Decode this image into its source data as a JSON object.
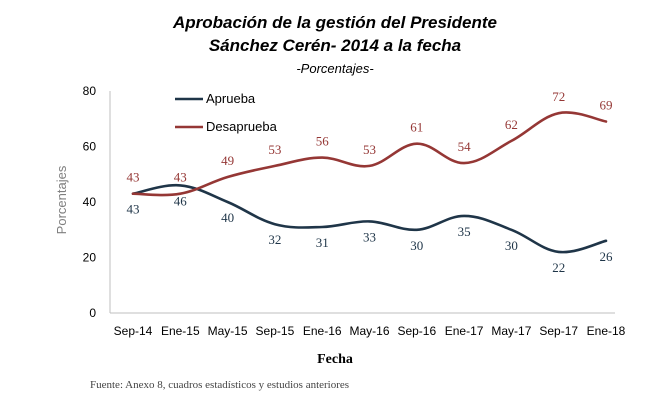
{
  "title_line1": "Aprobación de la gestión del Presidente",
  "title_line2": "Sánchez Cerén- 2014 a la fecha",
  "subtitle": "-Porcentajes-",
  "source": "Fuente: Anexo 8, cuadros estadísticos y estudios anteriores",
  "chart_data": {
    "type": "line",
    "title": "Aprobación de la gestión del Presidente Sánchez Cerén- 2014 a la fecha",
    "subtitle": "-Porcentajes-",
    "xlabel": "Fecha",
    "ylabel": "Porcentajes",
    "ylim": [
      0,
      80
    ],
    "yticks": [
      0,
      20,
      40,
      60,
      80
    ],
    "grid": false,
    "legend_position": "top-left",
    "categories": [
      "Sep-14",
      "Ene-15",
      "May-15",
      "Sep-15",
      "Ene-16",
      "May-16",
      "Sep-16",
      "Ene-17",
      "May-17",
      "Sep-17",
      "Ene-18"
    ],
    "series": [
      {
        "name": "Aprueba",
        "color": "#1f3548",
        "values": [
          43,
          46,
          40,
          32,
          31,
          33,
          30,
          35,
          30,
          22,
          26
        ]
      },
      {
        "name": "Desaprueba",
        "color": "#953735",
        "values": [
          43,
          43,
          49,
          53,
          56,
          53,
          61,
          54,
          62,
          72,
          69
        ]
      }
    ]
  }
}
